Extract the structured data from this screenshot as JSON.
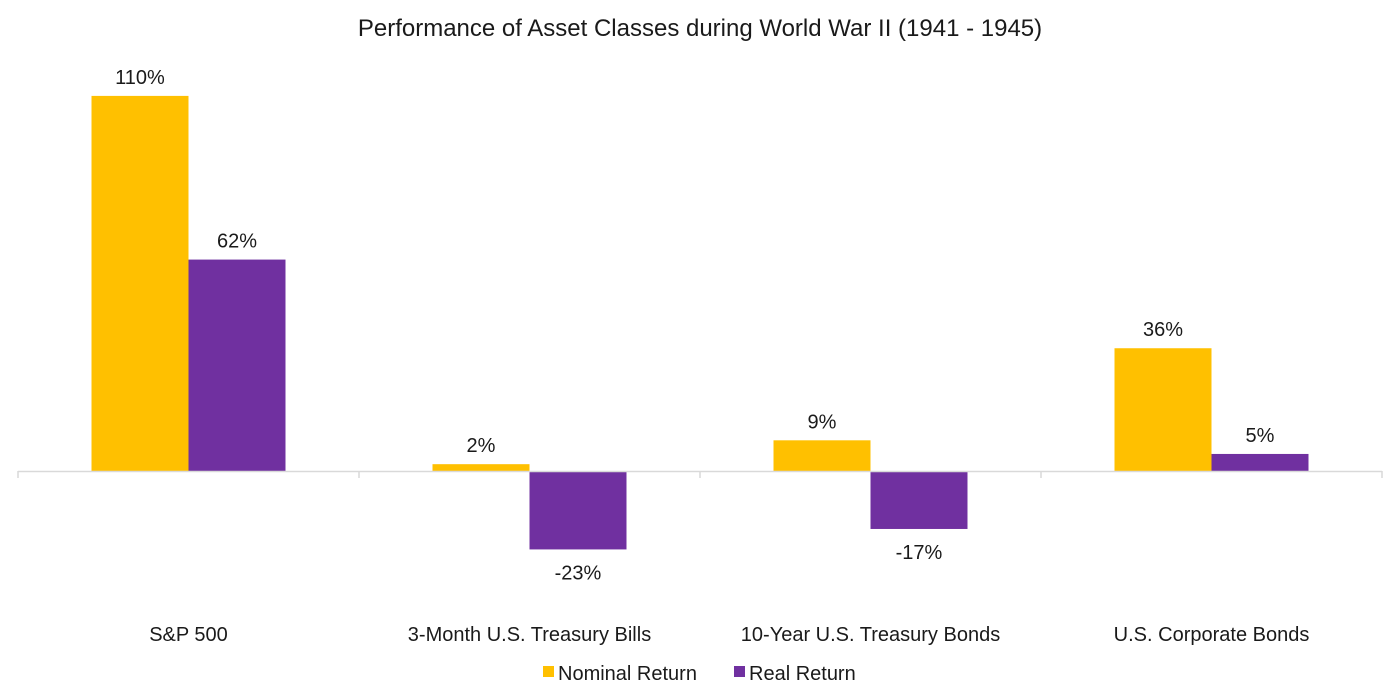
{
  "chart_data": {
    "type": "bar",
    "title": "Performance of Asset Classes during World War II (1941 - 1945)",
    "xlabel": "",
    "ylabel": "",
    "ylim": [
      -40,
      120
    ],
    "grid": false,
    "legend_position": "bottom",
    "categories": [
      "S&P 500",
      "3-Month U.S. Treasury Bills",
      "10-Year U.S. Treasury Bonds",
      "U.S. Corporate Bonds"
    ],
    "series": [
      {
        "name": "Nominal Return",
        "color": "#FFC000",
        "values": [
          110,
          2,
          9,
          36
        ],
        "labels": [
          "110%",
          "2%",
          "9%",
          "36%"
        ]
      },
      {
        "name": "Real Return",
        "color": "#7030A0",
        "values": [
          62,
          -23,
          -17,
          5
        ],
        "labels": [
          "62%",
          "-23%",
          "-17%",
          "5%"
        ]
      }
    ]
  }
}
